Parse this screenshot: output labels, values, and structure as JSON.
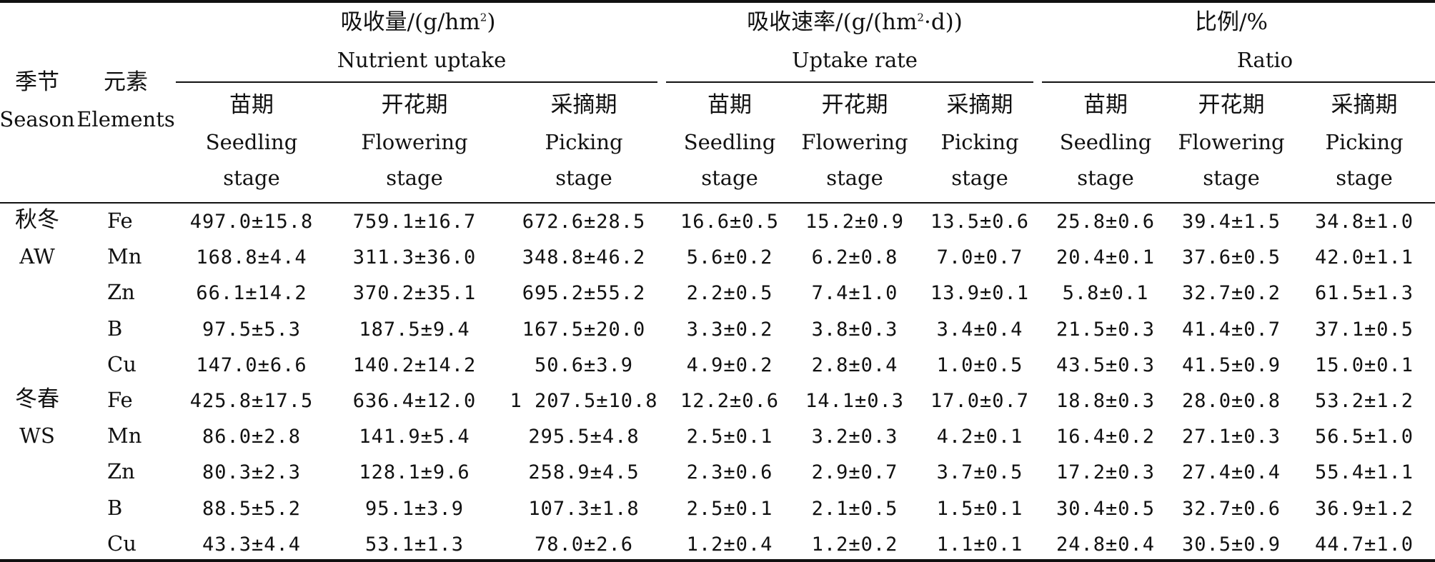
{
  "table": {
    "header": {
      "season_zh": "季节",
      "season_en": "Season",
      "elements_zh": "元素",
      "elements_en": "Elements",
      "groups": [
        {
          "zh": "吸收量/(g/hm",
          "sup": "2",
          "zh_tail": ")",
          "en": "Nutrient uptake"
        },
        {
          "zh": "吸收速率/(g/(hm",
          "sup": "2",
          "zh_tail": "·d))",
          "en": "Uptake rate"
        },
        {
          "zh": "比例/%",
          "sup": "",
          "zh_tail": "",
          "en": "Ratio"
        }
      ],
      "stages": [
        {
          "zh": "苗期",
          "en1": "Seedling",
          "en2": "stage"
        },
        {
          "zh": "开花期",
          "en1": "Flowering",
          "en2": "stage"
        },
        {
          "zh": "采摘期",
          "en1": "Picking",
          "en2": "stage"
        }
      ]
    },
    "seasons": [
      {
        "zh": "秋冬",
        "en": "AW",
        "rows": [
          {
            "element": "Fe",
            "values": [
              "497.0±15.8",
              "759.1±16.7",
              "672.6±28.5",
              "16.6±0.5",
              "15.2±0.9",
              "13.5±0.6",
              "25.8±0.6",
              "39.4±1.5",
              "34.8±1.0"
            ]
          },
          {
            "element": "Mn",
            "values": [
              "168.8±4.4",
              "311.3±36.0",
              "348.8±46.2",
              "5.6±0.2",
              "6.2±0.8",
              "7.0±0.7",
              "20.4±0.1",
              "37.6±0.5",
              "42.0±1.1"
            ]
          },
          {
            "element": "Zn",
            "values": [
              "66.1±14.2",
              "370.2±35.1",
              "695.2±55.2",
              "2.2±0.5",
              "7.4±1.0",
              "13.9±0.1",
              "5.8±0.1",
              "32.7±0.2",
              "61.5±1.3"
            ]
          },
          {
            "element": "B",
            "values": [
              "97.5±5.3",
              "187.5±9.4",
              "167.5±20.0",
              "3.3±0.2",
              "3.8±0.3",
              "3.4±0.4",
              "21.5±0.3",
              "41.4±0.7",
              "37.1±0.5"
            ]
          },
          {
            "element": "Cu",
            "values": [
              "147.0±6.6",
              "140.2±14.2",
              "50.6±3.9",
              "4.9±0.2",
              "2.8±0.4",
              "1.0±0.5",
              "43.5±0.3",
              "41.5±0.9",
              "15.0±0.1"
            ]
          }
        ]
      },
      {
        "zh": "冬春",
        "en": "WS",
        "rows": [
          {
            "element": "Fe",
            "values": [
              "425.8±17.5",
              "636.4±12.0",
              "1 207.5±10.8",
              "12.2±0.6",
              "14.1±0.3",
              "17.0±0.7",
              "18.8±0.3",
              "28.0±0.8",
              "53.2±1.2"
            ]
          },
          {
            "element": "Mn",
            "values": [
              "86.0±2.8",
              "141.9±5.4",
              "295.5±4.8",
              "2.5±0.1",
              "3.2±0.3",
              "4.2±0.1",
              "16.4±0.2",
              "27.1±0.3",
              "56.5±1.0"
            ]
          },
          {
            "element": "Zn",
            "values": [
              "80.3±2.3",
              "128.1±9.6",
              "258.9±4.5",
              "2.3±0.6",
              "2.9±0.7",
              "3.7±0.5",
              "17.2±0.3",
              "27.4±0.4",
              "55.4±1.1"
            ]
          },
          {
            "element": "B",
            "values": [
              "88.5±5.2",
              "95.1±3.9",
              "107.3±1.8",
              "2.5±0.1",
              "2.1±0.5",
              "1.5±0.1",
              "30.4±0.5",
              "32.7±0.6",
              "36.9±1.2"
            ]
          },
          {
            "element": "Cu",
            "values": [
              "43.3±4.4",
              "53.1±1.3",
              "78.0±2.6",
              "1.2±0.4",
              "1.2±0.2",
              "1.1±0.1",
              "24.8±0.4",
              "30.5±0.9",
              "44.7±1.0"
            ]
          }
        ]
      }
    ]
  }
}
